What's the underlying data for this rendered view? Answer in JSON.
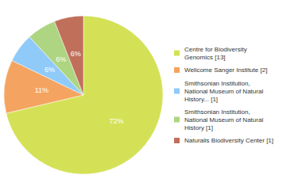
{
  "chart_data": {
    "type": "pie",
    "categories": [
      "Centre for Biodiversity\nGenomics [13]",
      "Wellcome Sanger Institute [2]",
      "Smithsonian Institution,\nNational Museum of Natural\nHistory... [1]",
      "Smithsonian Institution,\nNational Museum of Natural\nHistory [1]",
      "Naturalis Biodiversity Center [1]"
    ],
    "values": [
      72,
      11,
      6,
      6,
      6
    ],
    "value_labels": [
      "72%",
      "11%",
      "6%",
      "6%",
      "6%"
    ],
    "colors": [
      "#d4e157",
      "#f4a460",
      "#90caf9",
      "#aed581",
      "#c0705a"
    ],
    "data_labels": true,
    "legend": "right"
  }
}
